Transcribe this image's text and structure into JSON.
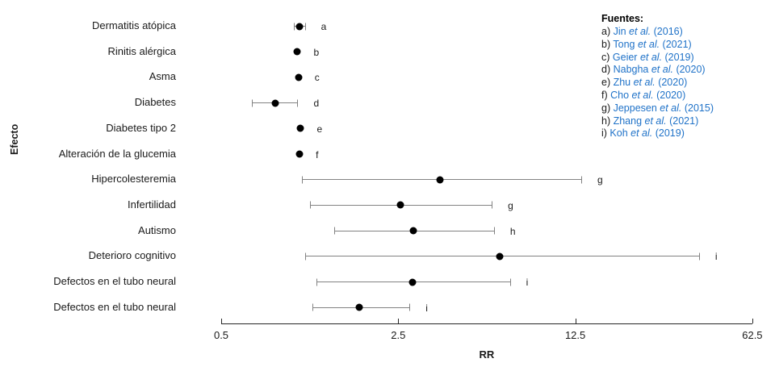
{
  "chart_data": {
    "type": "scatter",
    "subtype": "forest-plot",
    "title": "",
    "xlabel": "RR",
    "ylabel": "Efecto",
    "x_scale": "log",
    "x_ticks": [
      "0.5",
      "2.5",
      "12.5",
      "62.5"
    ],
    "x_tick_values": [
      0.5,
      2.5,
      12.5,
      62.5
    ],
    "xlim": [
      0.5,
      62.5
    ],
    "grid": false,
    "legend_position": "top-right",
    "marker_color": "#000000",
    "whisker_color": "#828282",
    "link_color": "#1f72c8",
    "rows": [
      {
        "label": "Dermatitis atópica",
        "source": "a",
        "rr": 1.02,
        "ci_low": 0.97,
        "ci_high": 1.07
      },
      {
        "label": "Rinitis alérgica",
        "source": "b",
        "rr": 1.0,
        "ci_low": 1.0,
        "ci_high": 1.0
      },
      {
        "label": "Asma",
        "source": "c",
        "rr": 1.01,
        "ci_low": 1.01,
        "ci_high": 1.01
      },
      {
        "label": "Diabetes",
        "source": "d",
        "rr": 0.82,
        "ci_low": 0.66,
        "ci_high": 1.0
      },
      {
        "label": "Diabetes tipo 2",
        "source": "e",
        "rr": 1.03,
        "ci_low": 1.03,
        "ci_high": 1.03
      },
      {
        "label": "Alteración de la glucemia",
        "source": "f",
        "rr": 1.02,
        "ci_low": 1.02,
        "ci_high": 1.02
      },
      {
        "label": "Hipercolesteremia",
        "source": "g",
        "rr": 3.66,
        "ci_low": 1.04,
        "ci_high": 13.2
      },
      {
        "label": "Infertilidad",
        "source": "g",
        "rr": 2.55,
        "ci_low": 1.12,
        "ci_high": 5.85
      },
      {
        "label": "Autismo",
        "source": "h",
        "rr": 2.87,
        "ci_low": 1.4,
        "ci_high": 5.97
      },
      {
        "label": "Deterioro cognitivo",
        "source": "i",
        "rr": 6.3,
        "ci_low": 1.07,
        "ci_high": 38.5
      },
      {
        "label": "Defectos en el tubo neural",
        "source": "i",
        "rr": 2.85,
        "ci_low": 1.19,
        "ci_high": 6.9
      },
      {
        "label": "Defectos en el tubo neural",
        "source": "i",
        "rr": 1.76,
        "ci_low": 1.15,
        "ci_high": 2.77
      }
    ],
    "legend": {
      "title": "Fuentes:",
      "entries": [
        {
          "prefix": "a)",
          "author": "Jin",
          "etal": "et al.",
          "year": "(2016)"
        },
        {
          "prefix": "b)",
          "author": "Tong",
          "etal": "et al.",
          "year": "(2021)"
        },
        {
          "prefix": "c)",
          "author": "Geier",
          "etal": "et al.",
          "year": "(2019)"
        },
        {
          "prefix": "d)",
          "author": "Nabgha",
          "etal": "et al.",
          "year": "(2020)"
        },
        {
          "prefix": "e)",
          "author": "Zhu",
          "etal": "et al.",
          "year": "(2020)"
        },
        {
          "prefix": "f)",
          "author": "Cho",
          "etal": "et al.",
          "year": "(2020)"
        },
        {
          "prefix": "g)",
          "author": "Jeppesen",
          "etal": "et al.",
          "year": "(2015)"
        },
        {
          "prefix": "h)",
          "author": "Zhang",
          "etal": "et al.",
          "year": "(2021)"
        },
        {
          "prefix": "i)",
          "author": "Koh",
          "etal": "et al.",
          "year": "(2019)"
        }
      ]
    }
  }
}
